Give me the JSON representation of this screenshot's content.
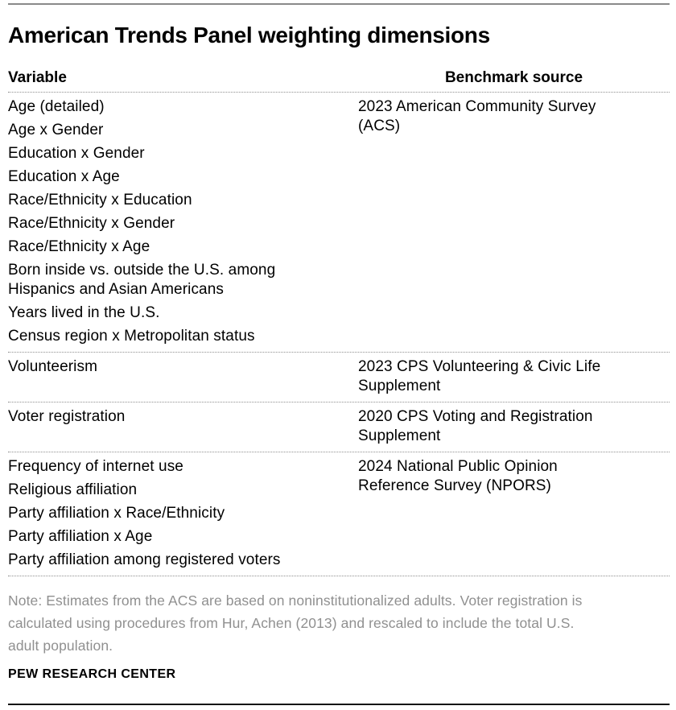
{
  "title": "American Trends Panel weighting dimensions",
  "colors": {
    "text_black": "#000000",
    "note_gray": "#909090",
    "top_rule_gray": "#8a8a8a",
    "bottom_rule_black": "#111111",
    "divider_dotted_gray": "#8f8f8f",
    "background": "#ffffff"
  },
  "table": {
    "col1_header": "Variable",
    "col2_header": "Benchmark source",
    "sections": [
      {
        "variables": [
          "Age (detailed)",
          "Age x Gender",
          "Education x Gender",
          "Education x Age",
          "Race/Ethnicity x Education",
          "Race/Ethnicity x Gender",
          "Race/Ethnicity x Age",
          "Born inside vs. outside the U.S. among\nHispanics and Asian Americans",
          "Years lived in the U.S.",
          "Census region x Metropolitan status"
        ],
        "benchmark": "2023 American Community Survey\n(ACS)"
      },
      {
        "variables": [
          "Volunteerism"
        ],
        "benchmark": "2023 CPS Volunteering & Civic Life\nSupplement"
      },
      {
        "variables": [
          "Voter registration"
        ],
        "benchmark": "2020 CPS Voting and Registration\nSupplement"
      },
      {
        "variables": [
          "Frequency of internet use",
          "Religious affiliation",
          "Party affiliation x Race/Ethnicity",
          "Party affiliation x Age",
          "Party affiliation among registered voters"
        ],
        "benchmark": "2024 National Public Opinion\nReference Survey (NPORS)"
      }
    ]
  },
  "note": "Note: Estimates from the ACS are based on noninstitutionalized adults. Voter registration is\ncalculated using procedures from Hur, Achen (2013) and rescaled to include the total U.S.\nadult population.",
  "source": "PEW RESEARCH CENTER",
  "chart_data": {
    "type": "table",
    "title": "American Trends Panel weighting dimensions",
    "columns": [
      "Variable",
      "Benchmark source"
    ],
    "rows": [
      {
        "variables": [
          "Age (detailed)",
          "Age x Gender",
          "Education x Gender",
          "Education x Age",
          "Race/Ethnicity x Education",
          "Race/Ethnicity x Gender",
          "Race/Ethnicity x Age",
          "Born inside vs. outside the U.S. among Hispanics and Asian Americans",
          "Years lived in the U.S.",
          "Census region x Metropolitan status"
        ],
        "benchmark_source": "2023 American Community Survey (ACS)"
      },
      {
        "variables": [
          "Volunteerism"
        ],
        "benchmark_source": "2023 CPS Volunteering & Civic Life Supplement"
      },
      {
        "variables": [
          "Voter registration"
        ],
        "benchmark_source": "2020 CPS Voting and Registration Supplement"
      },
      {
        "variables": [
          "Frequency of internet use",
          "Religious affiliation",
          "Party affiliation x Race/Ethnicity",
          "Party affiliation x Age",
          "Party affiliation among registered voters"
        ],
        "benchmark_source": "2024 National Public Opinion Reference Survey (NPORS)"
      }
    ],
    "note": "Note: Estimates from the ACS are based on noninstitutionalized adults. Voter registration is calculated using procedures from Hur, Achen (2013) and rescaled to include the total U.S. adult population.",
    "source": "PEW RESEARCH CENTER",
    "legend_position": "none",
    "grid": "dotted row separators"
  }
}
